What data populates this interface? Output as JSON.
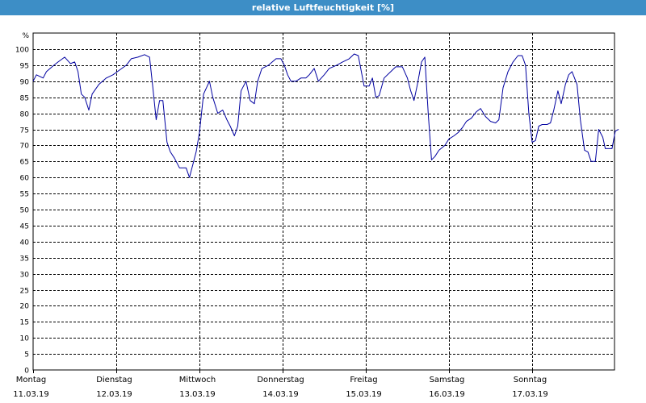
{
  "chart_data": {
    "type": "line",
    "title": "relative Luftfeuchtigkeit [%]",
    "y_unit": "%",
    "ylim": [
      0,
      100
    ],
    "y_ticks": [
      0,
      5,
      10,
      15,
      20,
      25,
      30,
      35,
      40,
      45,
      50,
      55,
      60,
      65,
      70,
      75,
      80,
      85,
      90,
      95,
      100
    ],
    "grid": true,
    "days": [
      {
        "weekday": "Montag",
        "date": "11.03.19"
      },
      {
        "weekday": "Dienstag",
        "date": "12.03.19"
      },
      {
        "weekday": "Mittwoch",
        "date": "13.03.19"
      },
      {
        "weekday": "Donnerstag",
        "date": "14.03.19"
      },
      {
        "weekday": "Freitag",
        "date": "15.03.19"
      },
      {
        "weekday": "Samstag",
        "date": "16.03.19"
      },
      {
        "weekday": "Sonntag",
        "date": "17.03.19"
      }
    ],
    "series": [
      {
        "color": "#0000a0",
        "points": [
          [
            0.0,
            90
          ],
          [
            0.04,
            92
          ],
          [
            0.12,
            91
          ],
          [
            0.16,
            93
          ],
          [
            0.25,
            95
          ],
          [
            0.3,
            96
          ],
          [
            0.38,
            97.5
          ],
          [
            0.45,
            95.5
          ],
          [
            0.5,
            96
          ],
          [
            0.54,
            93
          ],
          [
            0.58,
            86
          ],
          [
            0.62,
            85
          ],
          [
            0.67,
            81
          ],
          [
            0.71,
            86
          ],
          [
            0.79,
            89
          ],
          [
            0.88,
            91
          ],
          [
            0.96,
            92
          ],
          [
            1.04,
            93.5
          ],
          [
            1.12,
            95
          ],
          [
            1.18,
            97
          ],
          [
            1.26,
            97.5
          ],
          [
            1.34,
            98.3
          ],
          [
            1.4,
            97.5
          ],
          [
            1.44,
            88
          ],
          [
            1.48,
            78
          ],
          [
            1.52,
            84
          ],
          [
            1.56,
            84
          ],
          [
            1.61,
            71
          ],
          [
            1.65,
            68
          ],
          [
            1.7,
            66
          ],
          [
            1.76,
            63
          ],
          [
            1.84,
            63
          ],
          [
            1.88,
            60
          ],
          [
            1.92,
            64
          ],
          [
            1.96,
            68
          ],
          [
            2.0,
            74
          ],
          [
            2.05,
            86
          ],
          [
            2.12,
            90
          ],
          [
            2.16,
            85
          ],
          [
            2.22,
            80
          ],
          [
            2.28,
            81
          ],
          [
            2.33,
            78
          ],
          [
            2.37,
            76
          ],
          [
            2.42,
            73
          ],
          [
            2.46,
            76
          ],
          [
            2.5,
            87
          ],
          [
            2.56,
            90
          ],
          [
            2.61,
            84
          ],
          [
            2.66,
            83
          ],
          [
            2.7,
            90
          ],
          [
            2.75,
            94
          ],
          [
            2.83,
            95
          ],
          [
            2.92,
            97
          ],
          [
            2.98,
            97
          ],
          [
            3.02,
            95
          ],
          [
            3.06,
            92
          ],
          [
            3.1,
            90
          ],
          [
            3.16,
            90
          ],
          [
            3.22,
            91
          ],
          [
            3.28,
            91
          ],
          [
            3.32,
            92
          ],
          [
            3.38,
            94
          ],
          [
            3.43,
            90
          ],
          [
            3.5,
            92
          ],
          [
            3.56,
            94
          ],
          [
            3.65,
            95
          ],
          [
            3.72,
            96
          ],
          [
            3.8,
            97
          ],
          [
            3.86,
            98.5
          ],
          [
            3.91,
            98
          ],
          [
            3.98,
            88.5
          ],
          [
            4.04,
            88.5
          ],
          [
            4.08,
            91
          ],
          [
            4.12,
            85
          ],
          [
            4.16,
            85.5
          ],
          [
            4.22,
            91
          ],
          [
            4.3,
            93
          ],
          [
            4.36,
            94.5
          ],
          [
            4.44,
            94.5
          ],
          [
            4.5,
            91
          ],
          [
            4.54,
            87
          ],
          [
            4.58,
            84
          ],
          [
            4.62,
            89
          ],
          [
            4.67,
            96
          ],
          [
            4.71,
            97.5
          ],
          [
            4.75,
            80
          ],
          [
            4.79,
            65.5
          ],
          [
            4.83,
            66.5
          ],
          [
            4.88,
            68.5
          ],
          [
            4.95,
            70
          ],
          [
            5.0,
            72
          ],
          [
            5.06,
            73
          ],
          [
            5.11,
            74
          ],
          [
            5.16,
            75.5
          ],
          [
            5.21,
            77.5
          ],
          [
            5.27,
            78.5
          ],
          [
            5.33,
            80.5
          ],
          [
            5.38,
            81.5
          ],
          [
            5.44,
            79
          ],
          [
            5.5,
            77.5
          ],
          [
            5.56,
            77
          ],
          [
            5.6,
            78
          ],
          [
            5.65,
            88
          ],
          [
            5.71,
            93
          ],
          [
            5.77,
            96
          ],
          [
            5.83,
            98
          ],
          [
            5.88,
            98
          ],
          [
            5.92,
            95
          ],
          [
            5.96,
            80
          ],
          [
            6.0,
            71
          ],
          [
            6.04,
            71.5
          ],
          [
            6.08,
            76
          ],
          [
            6.12,
            76.5
          ],
          [
            6.18,
            76.5
          ],
          [
            6.22,
            77
          ],
          [
            6.26,
            81
          ],
          [
            6.31,
            87
          ],
          [
            6.35,
            83
          ],
          [
            6.4,
            89
          ],
          [
            6.44,
            92
          ],
          [
            6.48,
            93
          ],
          [
            6.54,
            89
          ],
          [
            6.58,
            78
          ],
          [
            6.63,
            68.5
          ],
          [
            6.67,
            68
          ],
          [
            6.71,
            65
          ],
          [
            6.76,
            65
          ],
          [
            6.8,
            75
          ],
          [
            6.85,
            72.5
          ],
          [
            6.88,
            69
          ],
          [
            6.92,
            69
          ],
          [
            6.96,
            69
          ],
          [
            7.0,
            74.5
          ],
          [
            7.04,
            75
          ]
        ]
      }
    ]
  }
}
